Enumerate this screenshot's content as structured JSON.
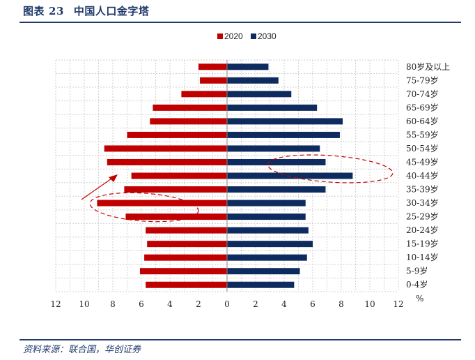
{
  "header": {
    "fig_label": "图表",
    "fig_number": "23",
    "title": "中国人口金字塔"
  },
  "source": "资料来源：联合国，华创证券",
  "colors": {
    "series_2020": "#c00000",
    "series_2030": "#0d2b5e",
    "rule": "#1f3a6b",
    "annotation": "#c00000"
  },
  "chart_data": {
    "type": "bar",
    "orientation": "horizontal",
    "categories": [
      "0-4岁",
      "5-9岁",
      "10-14岁",
      "15-19岁",
      "20-24岁",
      "25-29岁",
      "30-34岁",
      "35-39岁",
      "40-44岁",
      "45-49岁",
      "50-54岁",
      "55-59岁",
      "60-64岁",
      "65-69岁",
      "70-74岁",
      "75-79岁",
      "80岁及以上"
    ],
    "series": [
      {
        "name": "2020",
        "values": [
          5.7,
          6.1,
          5.8,
          5.6,
          5.7,
          7.1,
          9.1,
          7.2,
          6.7,
          8.4,
          8.6,
          7.0,
          5.4,
          5.2,
          3.2,
          1.9,
          2.0
        ],
        "direction": "left"
      },
      {
        "name": "2030",
        "values": [
          4.7,
          5.1,
          5.6,
          6.0,
          5.7,
          5.5,
          5.5,
          6.9,
          8.8,
          6.9,
          6.5,
          7.9,
          8.1,
          6.3,
          4.5,
          3.6,
          2.9
        ],
        "direction": "right"
      }
    ],
    "x_ticks": [
      "12",
      "10",
      "8",
      "6",
      "4",
      "2",
      "0",
      "2",
      "4",
      "6",
      "8",
      "10",
      "12"
    ],
    "x_unit": "%",
    "xlim": [
      -12,
      12
    ],
    "grid": true,
    "legend_placement": "top-center",
    "annotations": [
      "dashed ellipse around 2020 ages 25-34",
      "dashed ellipse around 2030 ages 40-49",
      "arrow pointing up-right near 35-44 (2020)"
    ]
  }
}
